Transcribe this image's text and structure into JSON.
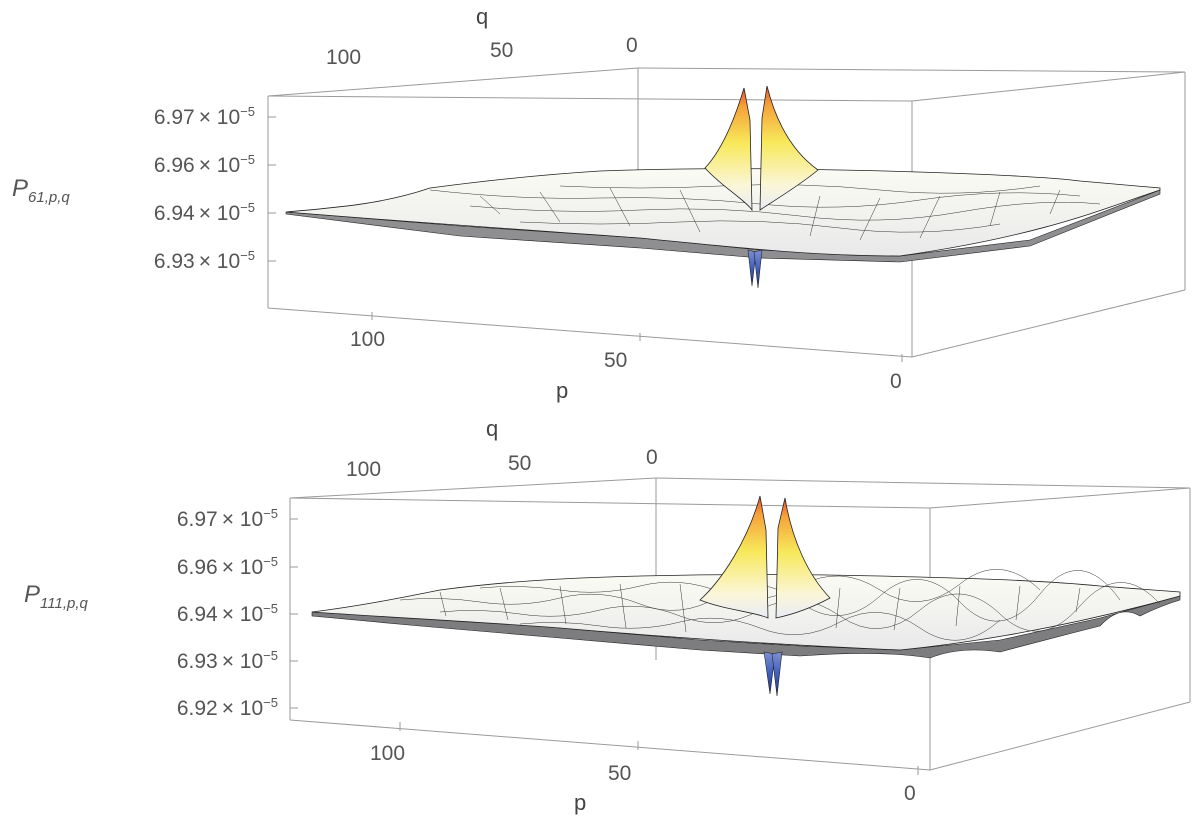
{
  "chart_data": [
    {
      "type": "surface3d",
      "zlabel": {
        "main": "P",
        "sub": "61,p,q"
      },
      "xlabel": "p",
      "ylabel": "q",
      "x_ticks": [
        "100",
        "50",
        "0"
      ],
      "y_ticks": [
        "100",
        "50",
        "0"
      ],
      "z_ticks": [
        {
          "value": 6.97e-05,
          "mantissa": "6.97",
          "base": "× 10",
          "exponent": "−5"
        },
        {
          "value": 6.96e-05,
          "mantissa": "6.96",
          "base": "× 10",
          "exponent": "−5"
        },
        {
          "value": 6.94e-05,
          "mantissa": "6.94",
          "base": "× 10",
          "exponent": "−5"
        },
        {
          "value": 6.93e-05,
          "mantissa": "6.93",
          "base": "× 10",
          "exponent": "−5"
        }
      ],
      "xlim": [
        0,
        120
      ],
      "ylim": [
        0,
        120
      ],
      "baseline": 6.945e-05,
      "peak_max": 6.975e-05,
      "trough_min": 6.93e-05
    },
    {
      "type": "surface3d",
      "zlabel": {
        "main": "P",
        "sub": "111,p,q"
      },
      "xlabel": "p",
      "ylabel": "q",
      "x_ticks": [
        "100",
        "50",
        "0"
      ],
      "y_ticks": [
        "100",
        "50",
        "0"
      ],
      "z_ticks": [
        {
          "value": 6.97e-05,
          "mantissa": "6.97",
          "base": "× 10",
          "exponent": "−5"
        },
        {
          "value": 6.96e-05,
          "mantissa": "6.96",
          "base": "× 10",
          "exponent": "−5"
        },
        {
          "value": 6.94e-05,
          "mantissa": "6.94",
          "base": "× 10",
          "exponent": "−5"
        },
        {
          "value": 6.93e-05,
          "mantissa": "6.93",
          "base": "× 10",
          "exponent": "−5"
        },
        {
          "value": 6.92e-05,
          "mantissa": "6.92",
          "base": "× 10",
          "exponent": "−5"
        }
      ],
      "xlim": [
        0,
        120
      ],
      "ylim": [
        0,
        120
      ],
      "baseline": 6.945e-05,
      "peak_max": 6.975e-05,
      "trough_min": 6.928e-05
    }
  ]
}
